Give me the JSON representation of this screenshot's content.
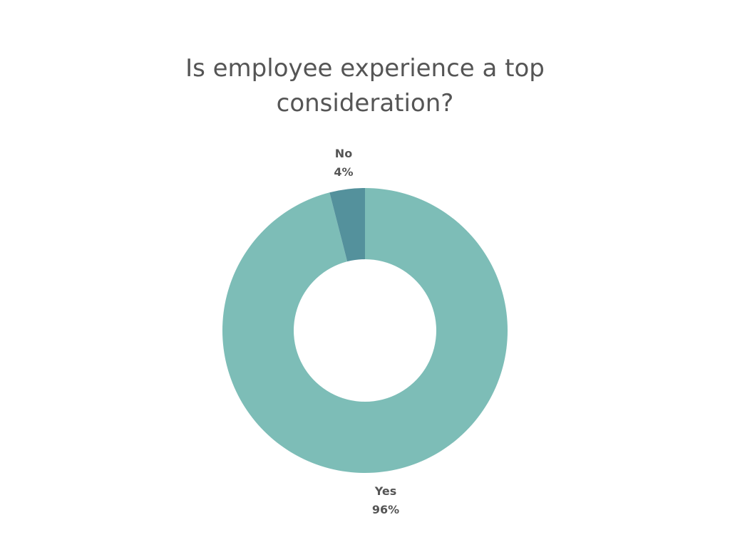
{
  "chart_data": {
    "type": "pie",
    "title": "Is employee experience a top consideration?",
    "slices": [
      {
        "label": "Yes",
        "value": 96,
        "value_label": "96%",
        "color": "#7dbdb7"
      },
      {
        "label": "No",
        "value": 4,
        "value_label": "4%",
        "color": "#54919c"
      }
    ],
    "donut": true,
    "legend": "none",
    "grid": false
  }
}
